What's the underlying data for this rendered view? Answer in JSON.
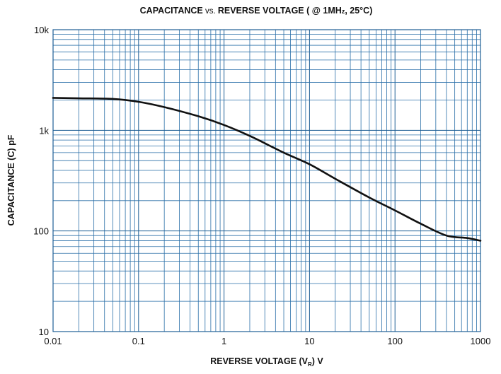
{
  "chart_data": {
    "type": "line",
    "title": "CAPACITANCE vs. REVERSE VOLTAGE ( @ 1MHz, 25°C)",
    "title_parts": {
      "a": "CAPACITANCE",
      "b": " vs. ",
      "c": "REVERSE VOLTAGE ( @ 1MH",
      "d": "z",
      "e": ", 25°C)"
    },
    "xlabel": "REVERSE VOLTAGE (V",
    "xlabel_sub": "R",
    "xlabel_end": ") V",
    "ylabel": "CAPACITANCE (C) pF",
    "xscale": "log",
    "yscale": "log",
    "xlim": [
      0.01,
      1000
    ],
    "ylim": [
      10,
      10000
    ],
    "grid": true,
    "x_ticks": [
      {
        "value": 0.01,
        "label": "0.01"
      },
      {
        "value": 0.1,
        "label": "0.1"
      },
      {
        "value": 1,
        "label": "1"
      },
      {
        "value": 10,
        "label": "10"
      },
      {
        "value": 100,
        "label": "100"
      },
      {
        "value": 1000,
        "label": "1000"
      }
    ],
    "y_ticks": [
      {
        "value": 10,
        "label": "10"
      },
      {
        "value": 100,
        "label": "100"
      },
      {
        "value": 1000,
        "label": "1k"
      },
      {
        "value": 10000,
        "label": "10k"
      }
    ],
    "series": [
      {
        "color": "#111111",
        "x": [
          0.01,
          0.02,
          0.05,
          0.1,
          0.2,
          0.5,
          1,
          2,
          5,
          10,
          20,
          50,
          100,
          200,
          400,
          700,
          1000
        ],
        "y": [
          2100,
          2080,
          2050,
          1920,
          1700,
          1380,
          1130,
          880,
          600,
          460,
          330,
          215,
          160,
          118,
          90,
          85,
          80
        ]
      }
    ]
  }
}
